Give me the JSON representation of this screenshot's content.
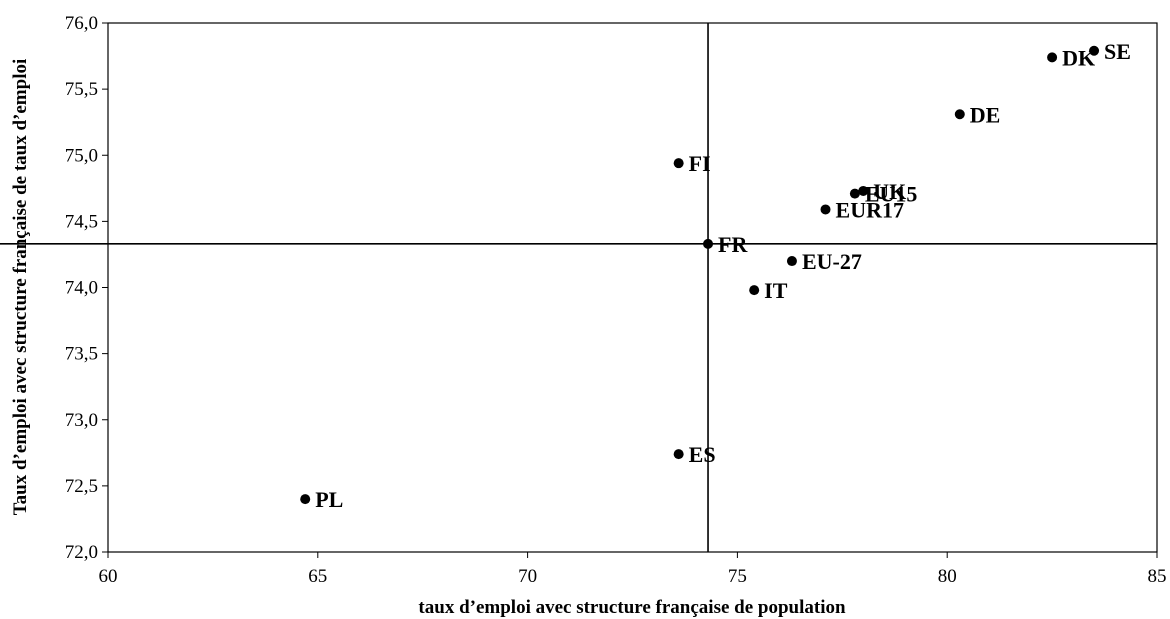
{
  "chart_data": {
    "type": "scatter",
    "xlabel": "taux d’emploi avec structure française de population",
    "ylabel": "Taux d’emploi avec structure française de taux d’emploi",
    "xlim": [
      60,
      85
    ],
    "ylim": [
      72.0,
      76.0
    ],
    "x_ticks": [
      60,
      65,
      70,
      75,
      80,
      85
    ],
    "x_tick_labels": [
      "60",
      "65",
      "70",
      "75",
      "80",
      "85"
    ],
    "y_ticks": [
      72.0,
      72.5,
      73.0,
      73.5,
      74.0,
      74.5,
      75.0,
      75.5,
      76.0
    ],
    "y_tick_labels": [
      "72,0",
      "72,5",
      "73,0",
      "73,5",
      "74,0",
      "74,5",
      "75,0",
      "75,5",
      "76,0"
    ],
    "grid": false,
    "reference_lines": {
      "x": 74.3,
      "y": 74.33
    },
    "points": [
      {
        "label": "SE",
        "x": 83.5,
        "y": 75.79
      },
      {
        "label": "DK",
        "x": 82.5,
        "y": 75.74
      },
      {
        "label": "DE",
        "x": 80.3,
        "y": 75.31
      },
      {
        "label": "FI",
        "x": 73.6,
        "y": 74.94
      },
      {
        "label": "UK",
        "x": 78.0,
        "y": 74.73
      },
      {
        "label": "EU15",
        "x": 77.8,
        "y": 74.71
      },
      {
        "label": "EUR17",
        "x": 77.1,
        "y": 74.59
      },
      {
        "label": "FR",
        "x": 74.3,
        "y": 74.33
      },
      {
        "label": "EU-27",
        "x": 76.3,
        "y": 74.2
      },
      {
        "label": "IT",
        "x": 75.4,
        "y": 73.98
      },
      {
        "label": "ES",
        "x": 73.6,
        "y": 72.74
      },
      {
        "label": "PL",
        "x": 64.7,
        "y": 72.4
      }
    ]
  }
}
